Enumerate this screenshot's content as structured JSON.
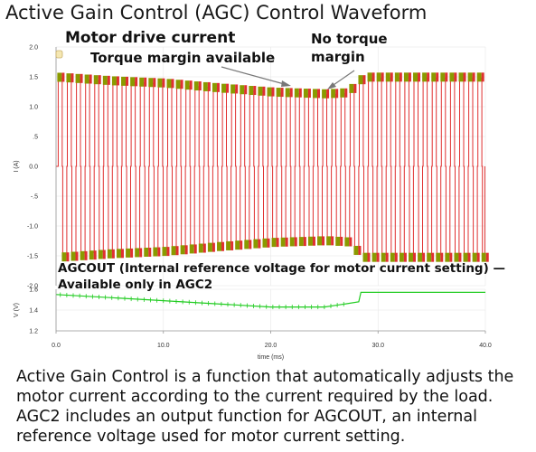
{
  "title": "Active Gain Control (AGC) Control Waveform",
  "annotations": {
    "motor_drive": "Motor drive current",
    "torque_margin": "Torque margin available",
    "no_torque": "No torque margin",
    "agcout": "AGCOUT (Internal reference voltage for motor current setting) — Available only in AGC2"
  },
  "caption": "Active Gain Control is a function that automatically adjusts the motor current according to the current required by the load. AGC2 includes an output function for AGCOUT, an internal reference voltage used for motor current setting.",
  "colors": {
    "current_trace": "#e03030",
    "current_highlight": "#8a9a00",
    "agcout_trace": "#22cc22",
    "axis": "#555555"
  },
  "chart_data": [
    {
      "type": "line",
      "ylabel": "I (A)",
      "ylim": [
        -2.0,
        2.0
      ],
      "yticks": [
        "2.0",
        "1.5",
        "1.0",
        ".5",
        "0.0",
        "-.5",
        "-1.0",
        "-1.5",
        "-2.0"
      ],
      "xlim": [
        0,
        40
      ],
      "series": [
        {
          "points": [
            [
              0,
              1.48
            ],
            [
              5,
              1.42
            ],
            [
              10,
              1.38
            ],
            [
              15,
              1.3
            ],
            [
              20,
              1.23
            ],
            [
              25,
              1.2
            ],
            [
              27,
              1.22
            ],
            [
              28.5,
              1.48
            ],
            [
              40,
              1.48
            ]
          ]
        }
      ]
    },
    {
      "type": "line",
      "ylabel": "V (V)",
      "ylim": [
        1.2,
        1.6
      ],
      "yticks": [
        "1.6",
        "1.4",
        "1.2"
      ],
      "xlabel": "time (ms)",
      "xlim": [
        0,
        40
      ],
      "xticks": [
        "0.0",
        "10.0",
        "20.0",
        "30.0",
        "40.0"
      ],
      "series": [
        {
          "points": [
            [
              0,
              1.55
            ],
            [
              5,
              1.52
            ],
            [
              10,
              1.49
            ],
            [
              15,
              1.46
            ],
            [
              20,
              1.43
            ],
            [
              25,
              1.43
            ],
            [
              27,
              1.46
            ],
            [
              28.2,
              1.48
            ],
            [
              28.4,
              1.57
            ],
            [
              40,
              1.57
            ]
          ]
        }
      ]
    }
  ]
}
